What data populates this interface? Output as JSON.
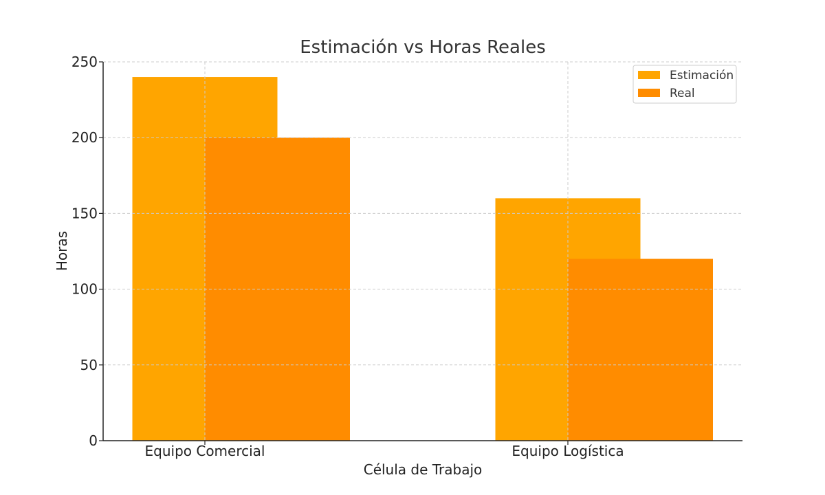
{
  "chart_data": {
    "type": "bar",
    "title": "Estimación vs Horas Reales",
    "xlabel": "Célula de Trabajo",
    "ylabel": "Horas",
    "categories": [
      "Equipo Comercial",
      "Equipo Logística"
    ],
    "series": [
      {
        "name": "Estimación",
        "values": [
          240,
          160
        ],
        "color": "#FFA500"
      },
      {
        "name": "Real",
        "values": [
          200,
          120
        ],
        "color": "#FF8C00"
      }
    ],
    "ylim": [
      0,
      250
    ],
    "yticks": [
      0,
      50,
      100,
      150,
      200,
      250
    ],
    "grid": true,
    "legend_position": "top-right"
  }
}
